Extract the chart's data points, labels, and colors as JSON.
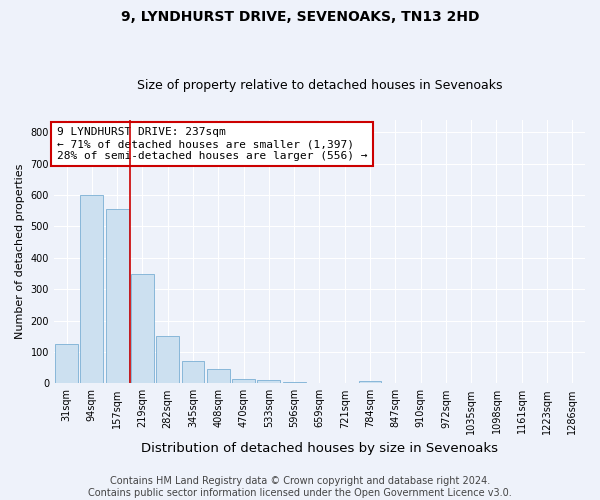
{
  "title": "9, LYNDHURST DRIVE, SEVENOAKS, TN13 2HD",
  "subtitle": "Size of property relative to detached houses in Sevenoaks",
  "xlabel": "Distribution of detached houses by size in Sevenoaks",
  "ylabel": "Number of detached properties",
  "bin_labels": [
    "31sqm",
    "94sqm",
    "157sqm",
    "219sqm",
    "282sqm",
    "345sqm",
    "408sqm",
    "470sqm",
    "533sqm",
    "596sqm",
    "659sqm",
    "721sqm",
    "784sqm",
    "847sqm",
    "910sqm",
    "972sqm",
    "1035sqm",
    "1098sqm",
    "1161sqm",
    "1223sqm",
    "1286sqm"
  ],
  "bar_heights": [
    125,
    600,
    555,
    348,
    150,
    70,
    45,
    15,
    10,
    3,
    0,
    0,
    8,
    0,
    0,
    0,
    0,
    0,
    0,
    0,
    0
  ],
  "bar_color": "#cce0f0",
  "bar_edge_color": "#7aafd4",
  "property_line_x": 2.5,
  "property_line_color": "#cc0000",
  "annotation_text": "9 LYNDHURST DRIVE: 237sqm\n← 71% of detached houses are smaller (1,397)\n28% of semi-detached houses are larger (556) →",
  "annotation_box_color": "#ffffff",
  "annotation_box_edge_color": "#cc0000",
  "ylim": [
    0,
    840
  ],
  "yticks": [
    0,
    100,
    200,
    300,
    400,
    500,
    600,
    700,
    800
  ],
  "background_color": "#eef2fa",
  "plot_bg_color": "#eef2fa",
  "footer_line1": "Contains HM Land Registry data © Crown copyright and database right 2024.",
  "footer_line2": "Contains public sector information licensed under the Open Government Licence v3.0.",
  "title_fontsize": 10,
  "subtitle_fontsize": 9,
  "xlabel_fontsize": 9.5,
  "ylabel_fontsize": 8,
  "tick_fontsize": 7,
  "footer_fontsize": 7,
  "annotation_fontsize": 8
}
